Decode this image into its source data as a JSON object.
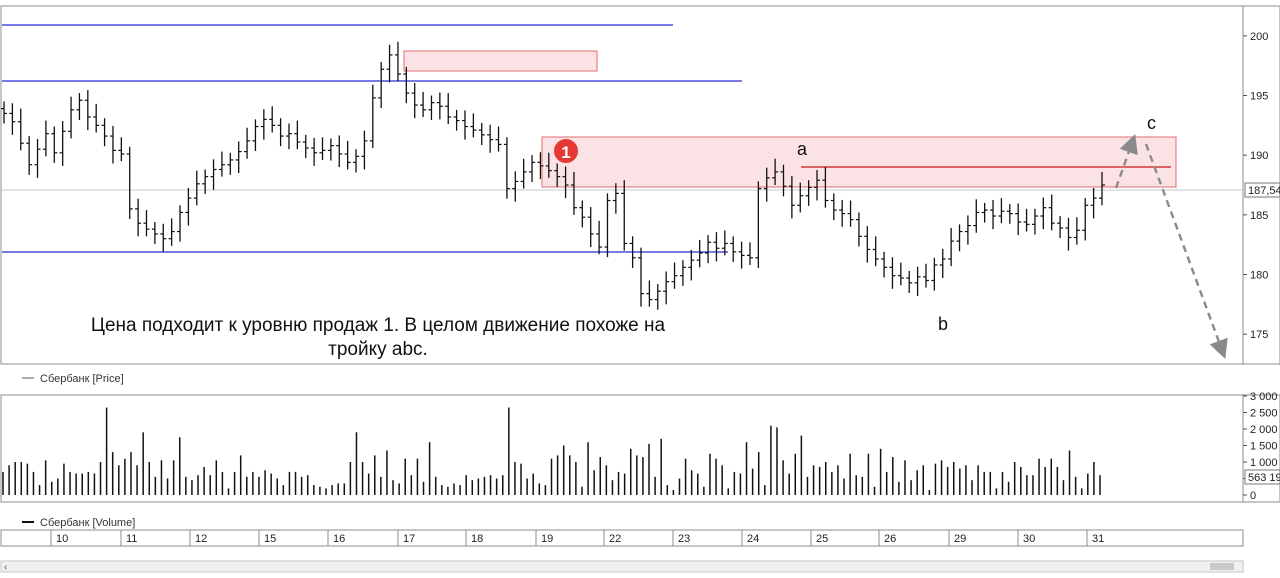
{
  "colors": {
    "bar": "#111111",
    "level_line": "#2b2bd6",
    "zone_fill": "#fbe3e5",
    "zone_stroke": "#e06b70",
    "resistance_line": "#d23b3b",
    "marker": "#e53935",
    "arrow": "#8a8a8a",
    "grid": "#c8c8c8"
  },
  "texts": {
    "caption_line1": "Цена подходит к уровню продаж 1. В целом движение похоже на",
    "caption_line2": "тройку abc.",
    "marker_label": "1",
    "wave_a": "a",
    "wave_b": "b",
    "wave_c": "c",
    "price_badge": "187,54",
    "volume_badge": "563 19"
  },
  "chart_data": [
    {
      "type": "ohlc",
      "legend": "Сбербанк [Price]",
      "ylim": [
        172.5,
        202.5
      ],
      "yticks": [
        175,
        180,
        185,
        190,
        195,
        200
      ],
      "ytick_labels": [
        "175",
        "180",
        "185",
        "190",
        "195",
        "200"
      ],
      "last_price": 187.54,
      "x_categories": [
        "10",
        "11",
        "12",
        "15",
        "16",
        "17",
        "18",
        "19",
        "22",
        "23",
        "24",
        "25",
        "26",
        "29",
        "30",
        "31"
      ],
      "closes": [
        193.5,
        192.8,
        191.0,
        189.2,
        190.5,
        191.8,
        190.2,
        192.0,
        193.8,
        194.6,
        193.2,
        192.5,
        191.6,
        190.4,
        190.1,
        185.5,
        184.3,
        183.8,
        183.4,
        183.0,
        183.6,
        185.2,
        186.4,
        187.6,
        188.2,
        188.8,
        189.2,
        189.6,
        190.3,
        191.2,
        192.4,
        193.0,
        192.5,
        191.6,
        191.8,
        191.1,
        190.6,
        190.2,
        190.4,
        190.8,
        190.1,
        189.4,
        189.9,
        191.2,
        194.8,
        197.2,
        198.4,
        196.8,
        195.2,
        194.2,
        193.8,
        194.4,
        194.1,
        193.2,
        192.9,
        192.4,
        192.1,
        191.7,
        191.3,
        190.9,
        187.2,
        187.8,
        188.6,
        189.4,
        189.1,
        188.7,
        188.2,
        187.5,
        185.6,
        184.8,
        183.4,
        182.3,
        186.2,
        186.8,
        182.6,
        181.4,
        178.4,
        177.9,
        178.6,
        179.4,
        179.9,
        180.6,
        181.2,
        181.8,
        182.7,
        182.2,
        182.6,
        181.9,
        181.6,
        181.4,
        187.2,
        188.1,
        188.6,
        187.4,
        185.8,
        186.6,
        187.3,
        187.9,
        186.2,
        185.4,
        185.1,
        184.6,
        183.2,
        182.1,
        181.3,
        180.6,
        179.9,
        179.7,
        179.3,
        179.8,
        179.5,
        180.8,
        181.3,
        182.8,
        183.6,
        184.1,
        185.2,
        185.4,
        184.9,
        185.3,
        185.1,
        184.4,
        184.2,
        184.9,
        185.6,
        184.3,
        183.9,
        183.1,
        183.7,
        185.8,
        186.4,
        187.5
      ]
    },
    {
      "type": "bar",
      "legend": "Сбербанк [Volume]",
      "ylim": [
        0,
        3000
      ],
      "yticks": [
        0,
        500,
        1000,
        1500,
        2000,
        2500,
        3000
      ],
      "ytick_labels": [
        "0",
        "500",
        "1 000",
        "1 500",
        "2 000",
        "2 500",
        "3 000"
      ],
      "last_value": 563190,
      "values": [
        700,
        900,
        1000,
        1000,
        950,
        700,
        300,
        1050,
        400,
        500,
        950,
        700,
        650,
        650,
        700,
        650,
        1000,
        2650,
        1300,
        900,
        1100,
        1300,
        900,
        1900,
        1000,
        550,
        1050,
        500,
        1050,
        1750,
        550,
        450,
        600,
        850,
        600,
        1050,
        700,
        200,
        700,
        1200,
        550,
        700,
        550,
        750,
        650,
        500,
        300,
        700,
        700,
        550,
        600,
        300,
        250,
        200,
        300,
        350,
        350,
        1000,
        1900,
        1000,
        650,
        1200,
        550,
        1350,
        450,
        350,
        1100,
        600,
        1100,
        400,
        1600,
        550,
        300,
        250,
        350,
        300,
        600,
        450,
        500,
        550,
        600,
        500,
        600,
        2650,
        1000,
        950,
        500,
        650,
        350,
        300,
        1100,
        1200,
        1500,
        1200,
        1000,
        250,
        1600,
        750,
        1150,
        900,
        450,
        700,
        650,
        1400,
        1200,
        1150,
        1550,
        550,
        1700,
        300,
        150,
        500,
        1100,
        750,
        650,
        250,
        1250,
        1100,
        900,
        200,
        700,
        650,
        1600,
        800,
        1300,
        300,
        2100,
        2050,
        1050,
        650,
        1250,
        1800,
        550,
        900,
        850,
        1000,
        700,
        900,
        500,
        1250,
        600,
        550,
        1250,
        250,
        1400,
        700,
        1150,
        400,
        1050,
        450,
        750,
        900,
        150,
        950,
        1050,
        850,
        1000,
        800,
        900,
        450,
        900,
        700,
        700,
        200,
        700,
        400,
        1000,
        850,
        600,
        600,
        1100,
        850,
        1100,
        850,
        450,
        1350,
        550,
        200,
        650,
        1000,
        600
      ]
    }
  ]
}
